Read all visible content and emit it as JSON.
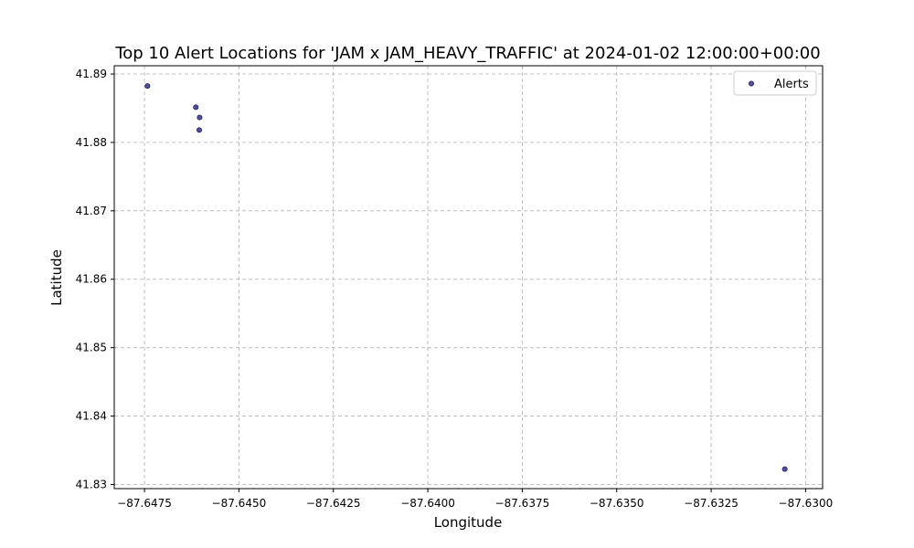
{
  "chart_data": {
    "type": "scatter",
    "title": "Top 10 Alert Locations for 'JAM x JAM_HEAVY_TRAFFIC' at 2024-01-02 12:00:00+00:00",
    "xlabel": "Longitude",
    "ylabel": "Latitude",
    "xlim": [
      -87.6483,
      -87.62955
    ],
    "ylim": [
      41.8294,
      41.8912
    ],
    "x_ticks": [
      -87.6475,
      -87.645,
      -87.6425,
      -87.64,
      -87.6375,
      -87.635,
      -87.6325,
      -87.63
    ],
    "x_tick_labels": [
      "−87.6475",
      "−87.6450",
      "−87.6425",
      "−87.6400",
      "−87.6375",
      "−87.6350",
      "−87.6325",
      "−87.6300"
    ],
    "y_ticks": [
      41.83,
      41.84,
      41.85,
      41.86,
      41.87,
      41.88,
      41.89
    ],
    "y_tick_labels": [
      "41.83",
      "41.84",
      "41.85",
      "41.86",
      "41.87",
      "41.88",
      "41.89"
    ],
    "grid": true,
    "legend_position": "top-right",
    "series": [
      {
        "name": "Alerts",
        "color": "#191970",
        "points": [
          {
            "x": -87.64742,
            "y": 41.88825
          },
          {
            "x": -87.64614,
            "y": 41.88515
          },
          {
            "x": -87.64604,
            "y": 41.88365
          },
          {
            "x": -87.64605,
            "y": 41.8818
          },
          {
            "x": -87.63055,
            "y": 41.83225
          }
        ]
      }
    ]
  }
}
